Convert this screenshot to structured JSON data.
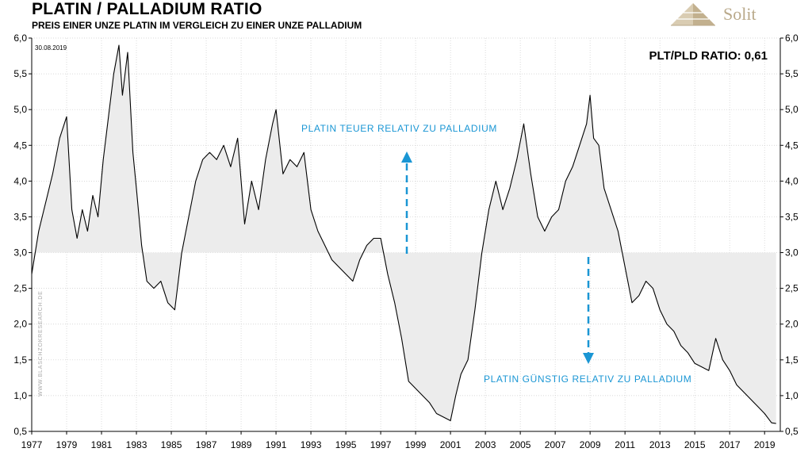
{
  "header": {
    "title": "PLATIN / PALLADIUM RATIO",
    "subtitle": "PREIS EINER UNZE PLATIN IM VERGLEICH ZU EINER UNZE PALLADIUM",
    "logo_text": "Solit"
  },
  "colors": {
    "line": "#000000",
    "fill": "#ececec",
    "annotation": "#1a96d4",
    "grid": "#cccccc",
    "logo": "#b9a98a"
  },
  "chart_data": {
    "type": "area",
    "title": "PLATIN / PALLADIUM RATIO",
    "subtitle": "PREIS EINER UNZE PLATIN IM VERGLEICH ZU EINER UNZE PALLADIUM",
    "xlabel": "",
    "ylabel": "",
    "xlim": [
      1977,
      2019.9
    ],
    "ylim": [
      0.5,
      6.0
    ],
    "baseline": 3.0,
    "grid": true,
    "x_ticks": [
      "1977",
      "1979",
      "1981",
      "1983",
      "1985",
      "1987",
      "1989",
      "1991",
      "1993",
      "1995",
      "1997",
      "1999",
      "2001",
      "2003",
      "2005",
      "2007",
      "2009",
      "2011",
      "2013",
      "2015",
      "2017",
      "2019"
    ],
    "y_ticks": [
      "0,5",
      "1,0",
      "1,5",
      "2,0",
      "2,5",
      "3,0",
      "3,5",
      "4,0",
      "4,5",
      "5,0",
      "5,5",
      "6,0"
    ],
    "date_label": "30.08.2019",
    "watermark": "WWW.BLASCHZOKRESEARCH.DE",
    "ratio_label": "PLT/PLD RATIO: 0,61",
    "annotations": {
      "upper": "PLATIN TEUER RELATIV ZU PALLADIUM",
      "lower": "PLATIN GÜNSTIG RELATIV ZU PALLADIUM"
    },
    "series": [
      {
        "x": [
          1977.0,
          1977.4,
          1977.8,
          1978.2,
          1978.6,
          1979.0,
          1979.3,
          1979.6,
          1979.9,
          1980.2,
          1980.5,
          1980.8,
          1981.1,
          1981.4,
          1981.7,
          1982.0,
          1982.2,
          1982.5,
          1982.8,
          1983.0,
          1983.3,
          1983.6,
          1984.0,
          1984.4,
          1984.8,
          1985.2,
          1985.6,
          1986.0,
          1986.4,
          1986.8,
          1987.2,
          1987.6,
          1988.0,
          1988.4,
          1988.8,
          1989.2,
          1989.6,
          1990.0,
          1990.4,
          1990.8,
          1991.0,
          1991.4,
          1991.8,
          1992.2,
          1992.6,
          1993.0,
          1993.4,
          1993.8,
          1994.2,
          1994.6,
          1995.0,
          1995.4,
          1995.8,
          1996.2,
          1996.6,
          1997.0,
          1997.4,
          1997.8,
          1998.2,
          1998.6,
          1999.0,
          1999.4,
          1999.8,
          2000.2,
          2000.6,
          2001.0,
          2001.3,
          2001.6,
          2002.0,
          2002.4,
          2002.8,
          2003.2,
          2003.6,
          2004.0,
          2004.4,
          2004.8,
          2005.2,
          2005.6,
          2006.0,
          2006.4,
          2006.8,
          2007.2,
          2007.6,
          2008.0,
          2008.4,
          2008.8,
          2009.0,
          2009.2,
          2009.5,
          2009.8,
          2010.2,
          2010.6,
          2011.0,
          2011.4,
          2011.8,
          2012.2,
          2012.6,
          2013.0,
          2013.4,
          2013.8,
          2014.2,
          2014.6,
          2015.0,
          2015.4,
          2015.8,
          2016.2,
          2016.6,
          2017.0,
          2017.4,
          2017.8,
          2018.2,
          2018.6,
          2019.0,
          2019.4,
          2019.66
        ],
        "values": [
          2.7,
          3.3,
          3.7,
          4.1,
          4.6,
          4.9,
          3.6,
          3.2,
          3.6,
          3.3,
          3.8,
          3.5,
          4.3,
          4.9,
          5.5,
          5.9,
          5.2,
          5.8,
          4.4,
          3.9,
          3.1,
          2.6,
          2.5,
          2.6,
          2.3,
          2.2,
          3.0,
          3.5,
          4.0,
          4.3,
          4.4,
          4.3,
          4.5,
          4.2,
          4.6,
          3.4,
          4.0,
          3.6,
          4.3,
          4.8,
          5.0,
          4.1,
          4.3,
          4.2,
          4.4,
          3.6,
          3.3,
          3.1,
          2.9,
          2.8,
          2.7,
          2.6,
          2.9,
          3.1,
          3.2,
          3.2,
          2.7,
          2.3,
          1.8,
          1.2,
          1.1,
          1.0,
          0.9,
          0.75,
          0.7,
          0.65,
          1.0,
          1.3,
          1.5,
          2.2,
          3.0,
          3.6,
          4.0,
          3.6,
          3.9,
          4.3,
          4.8,
          4.1,
          3.5,
          3.3,
          3.5,
          3.6,
          4.0,
          4.2,
          4.5,
          4.8,
          5.2,
          4.6,
          4.5,
          3.9,
          3.6,
          3.3,
          2.8,
          2.3,
          2.4,
          2.6,
          2.5,
          2.2,
          2.0,
          1.9,
          1.7,
          1.6,
          1.45,
          1.4,
          1.35,
          1.8,
          1.5,
          1.35,
          1.15,
          1.05,
          0.95,
          0.85,
          0.75,
          0.62,
          0.61
        ]
      }
    ]
  }
}
